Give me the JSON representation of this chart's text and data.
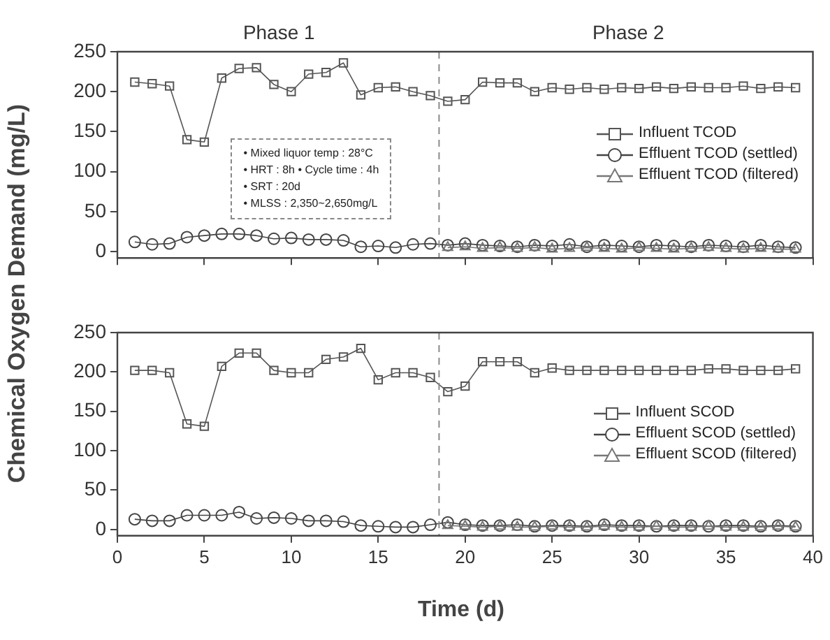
{
  "chart_data": [
    {
      "type": "line",
      "ylabel": "Chemical Oxygen Demand (mg/L)",
      "xlim": [
        0,
        40
      ],
      "xticks": [
        0,
        5,
        10,
        15,
        20,
        25,
        30,
        35,
        40
      ],
      "ylim": [
        -8,
        250
      ],
      "yticks": [
        0,
        50,
        100,
        150,
        200,
        250
      ],
      "tick_labels": "y",
      "grid": false,
      "legend": "right",
      "line_style": "solid",
      "x": [
        1,
        2,
        3,
        4,
        5,
        6,
        7,
        8,
        9,
        10,
        11,
        12,
        13,
        14,
        15,
        16,
        17,
        18,
        19,
        20,
        21,
        22,
        23,
        24,
        25,
        26,
        27,
        28,
        29,
        30,
        31,
        32,
        33,
        34,
        35,
        36,
        37,
        38,
        39
      ],
      "ref_lines": [
        {
          "axis": "x",
          "value": 18.5,
          "line_style": "dashed",
          "color": "#8a8a8a"
        }
      ],
      "annotations": [
        "Phase 1",
        "Phase 2",
        "• Mixed liquor temp : 28°C",
        "• HRT : 8h  • Cycle time : 4h",
        "• SRT : 20d",
        "• MLSS : 2,350~2,650mg/L"
      ],
      "series": [
        {
          "name": "Influent TCOD",
          "color": "#555555",
          "marker": "square",
          "values": [
            212,
            210,
            207,
            140,
            137,
            217,
            229,
            230,
            209,
            200,
            222,
            224,
            236,
            196,
            205,
            206,
            200,
            195,
            188,
            190,
            212,
            211,
            211,
            200,
            205,
            203,
            205,
            203,
            205,
            204,
            206,
            204,
            206,
            205,
            205,
            207,
            204,
            206,
            205
          ]
        },
        {
          "name": "Effluent TCOD (settled)",
          "color": "#444444",
          "marker": "circle",
          "values": [
            12,
            9,
            10,
            18,
            20,
            22,
            22,
            20,
            16,
            17,
            15,
            15,
            14,
            6,
            7,
            5,
            9,
            10,
            8,
            10,
            8,
            7,
            6,
            8,
            7,
            9,
            6,
            8,
            7,
            6,
            8,
            7,
            6,
            8,
            7,
            6,
            8,
            6,
            5
          ]
        },
        {
          "name": "Effluent TCOD (filtered)",
          "color": "#777777",
          "marker": "triangle",
          "x": [
            19,
            20,
            21,
            22,
            23,
            24,
            25,
            26,
            27,
            28,
            29,
            30,
            31,
            32,
            33,
            34,
            35,
            36,
            37,
            38,
            39
          ],
          "values": [
            5,
            6,
            4,
            5,
            4,
            5,
            3,
            4,
            5,
            4,
            3,
            5,
            4,
            3,
            4,
            5,
            4,
            3,
            4,
            3,
            3
          ]
        }
      ]
    },
    {
      "type": "line",
      "xlabel": "Time (d)",
      "xlim": [
        0,
        40
      ],
      "xticks": [
        0,
        5,
        10,
        15,
        20,
        25,
        30,
        35,
        40
      ],
      "ylim": [
        -8,
        250
      ],
      "yticks": [
        0,
        50,
        100,
        150,
        200,
        250
      ],
      "grid": false,
      "legend": "right",
      "line_style": "solid",
      "x": [
        1,
        2,
        3,
        4,
        5,
        6,
        7,
        8,
        9,
        10,
        11,
        12,
        13,
        14,
        15,
        16,
        17,
        18,
        19,
        20,
        21,
        22,
        23,
        24,
        25,
        26,
        27,
        28,
        29,
        30,
        31,
        32,
        33,
        34,
        35,
        36,
        37,
        38,
        39
      ],
      "ref_lines": [
        {
          "axis": "x",
          "value": 18.5,
          "line_style": "dashed",
          "color": "#8a8a8a"
        }
      ],
      "series": [
        {
          "name": "Influent SCOD",
          "color": "#555555",
          "marker": "square",
          "values": [
            202,
            202,
            199,
            134,
            131,
            207,
            224,
            224,
            202,
            199,
            199,
            216,
            219,
            230,
            190,
            199,
            199,
            193,
            175,
            182,
            213,
            213,
            213,
            199,
            205,
            202,
            202,
            202,
            202,
            202,
            202,
            202,
            202,
            204,
            204,
            202,
            202,
            202,
            204
          ]
        },
        {
          "name": "Effluent SCOD (settled)",
          "color": "#444444",
          "marker": "circle",
          "values": [
            13,
            11,
            11,
            18,
            18,
            18,
            22,
            14,
            15,
            14,
            11,
            11,
            10,
            5,
            4,
            3,
            3,
            6,
            9,
            6,
            5,
            5,
            6,
            4,
            5,
            5,
            4,
            6,
            5,
            5,
            4,
            5,
            5,
            4,
            5,
            5,
            4,
            5,
            4
          ]
        },
        {
          "name": "Effluent SCOD (filtered)",
          "color": "#777777",
          "marker": "triangle",
          "x": [
            19,
            20,
            21,
            22,
            23,
            24,
            25,
            26,
            27,
            28,
            29,
            30,
            31,
            32,
            33,
            34,
            35,
            36,
            37,
            38,
            39
          ],
          "values": [
            5,
            4,
            3,
            4,
            3,
            3,
            4,
            3,
            3,
            4,
            3,
            3,
            4,
            3,
            3,
            4,
            3,
            3,
            3,
            4,
            3
          ]
        }
      ]
    }
  ]
}
